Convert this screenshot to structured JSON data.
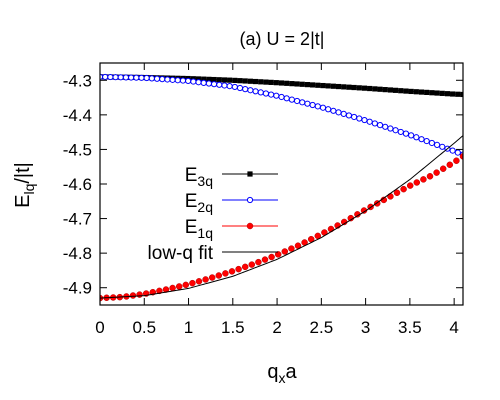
{
  "chart_data": {
    "type": "scatter",
    "title": "(a) U = 2|t|",
    "xlabel": "q",
    "xlabel_sub": "x",
    "xlabel_suffix": "a",
    "ylabel": "E",
    "ylabel_sub": "lq",
    "ylabel_suffix": "/|t|",
    "xlim": [
      0,
      4.1
    ],
    "ylim": [
      -4.95,
      -4.25
    ],
    "xticks": [
      0,
      0.5,
      1,
      1.5,
      2,
      2.5,
      3,
      3.5,
      4
    ],
    "xtick_labels": [
      "0",
      "0.5",
      "1",
      "1.5",
      "2",
      "2.5",
      "3",
      "3.5",
      "4"
    ],
    "yticks": [
      -4.9,
      -4.8,
      -4.7,
      -4.6,
      -4.5,
      -4.4,
      -4.3
    ],
    "ytick_labels": [
      "-4.9",
      "-4.8",
      "-4.7",
      "-4.6",
      "-4.5",
      "-4.4",
      "-4.3"
    ],
    "legend_position": "center-left",
    "series": [
      {
        "name": "E",
        "name_sub": "3q",
        "color": "#000000",
        "marker": "filled-square",
        "x": [
          0,
          0.5,
          1.0,
          1.5,
          2.0,
          2.5,
          3.0,
          3.5,
          4.0,
          4.1
        ],
        "y": [
          -4.29,
          -4.292,
          -4.295,
          -4.3,
          -4.307,
          -4.315,
          -4.323,
          -4.332,
          -4.34,
          -4.341
        ]
      },
      {
        "name": "E",
        "name_sub": "2q",
        "color": "#0000ff",
        "marker": "open-circle",
        "x": [
          0,
          0.5,
          1.0,
          1.5,
          2.0,
          2.5,
          3.0,
          3.5,
          4.0,
          4.1
        ],
        "y": [
          -4.29,
          -4.293,
          -4.302,
          -4.318,
          -4.345,
          -4.378,
          -4.416,
          -4.458,
          -4.505,
          -4.515
        ]
      },
      {
        "name": "E",
        "name_sub": "1q",
        "color": "#ff0000",
        "marker": "filled-circle",
        "x": [
          0,
          0.25,
          0.5,
          0.75,
          1.0,
          1.25,
          1.5,
          1.75,
          2.0,
          2.25,
          2.5,
          2.75,
          3.0,
          3.25,
          3.5,
          3.75,
          4.0,
          4.1
        ],
        "y": [
          -4.93,
          -4.927,
          -4.918,
          -4.905,
          -4.89,
          -4.872,
          -4.852,
          -4.83,
          -4.805,
          -4.777,
          -4.745,
          -4.711,
          -4.674,
          -4.64,
          -4.605,
          -4.575,
          -4.537,
          -4.52
        ]
      },
      {
        "name": "low-q fit",
        "color": "#000000",
        "marker": "line",
        "x": [
          0,
          0.5,
          1.0,
          1.5,
          2.0,
          2.5,
          3.0,
          3.5,
          4.0,
          4.1
        ],
        "y": [
          -4.93,
          -4.923,
          -4.902,
          -4.867,
          -4.818,
          -4.755,
          -4.678,
          -4.587,
          -4.482,
          -4.46
        ]
      }
    ]
  }
}
